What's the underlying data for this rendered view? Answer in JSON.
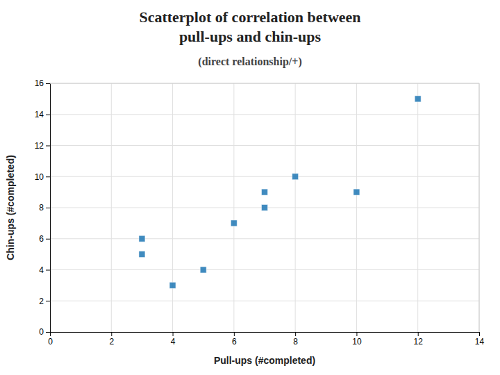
{
  "chart_data": {
    "type": "scatter",
    "title": [
      "Scatterplot of correlation between",
      "pull-ups and chin-ups"
    ],
    "subtitle": "(direct relationship/+)",
    "x_label": "Pull-ups (#completed)",
    "y_label": "Chin-ups (#completed)",
    "x": [
      3,
      3,
      4,
      5,
      6,
      7,
      7,
      8,
      10,
      12
    ],
    "values": [
      6,
      5,
      3,
      4,
      7,
      9,
      8,
      10,
      9,
      15
    ],
    "marker": "square",
    "xlim": [
      0,
      14
    ],
    "ylim": [
      0,
      16
    ],
    "xticks": [
      0,
      2,
      4,
      6,
      8,
      10,
      12,
      14
    ],
    "yticks": [
      0,
      2,
      4,
      6,
      8,
      10,
      12,
      14,
      16
    ],
    "grid": true
  }
}
